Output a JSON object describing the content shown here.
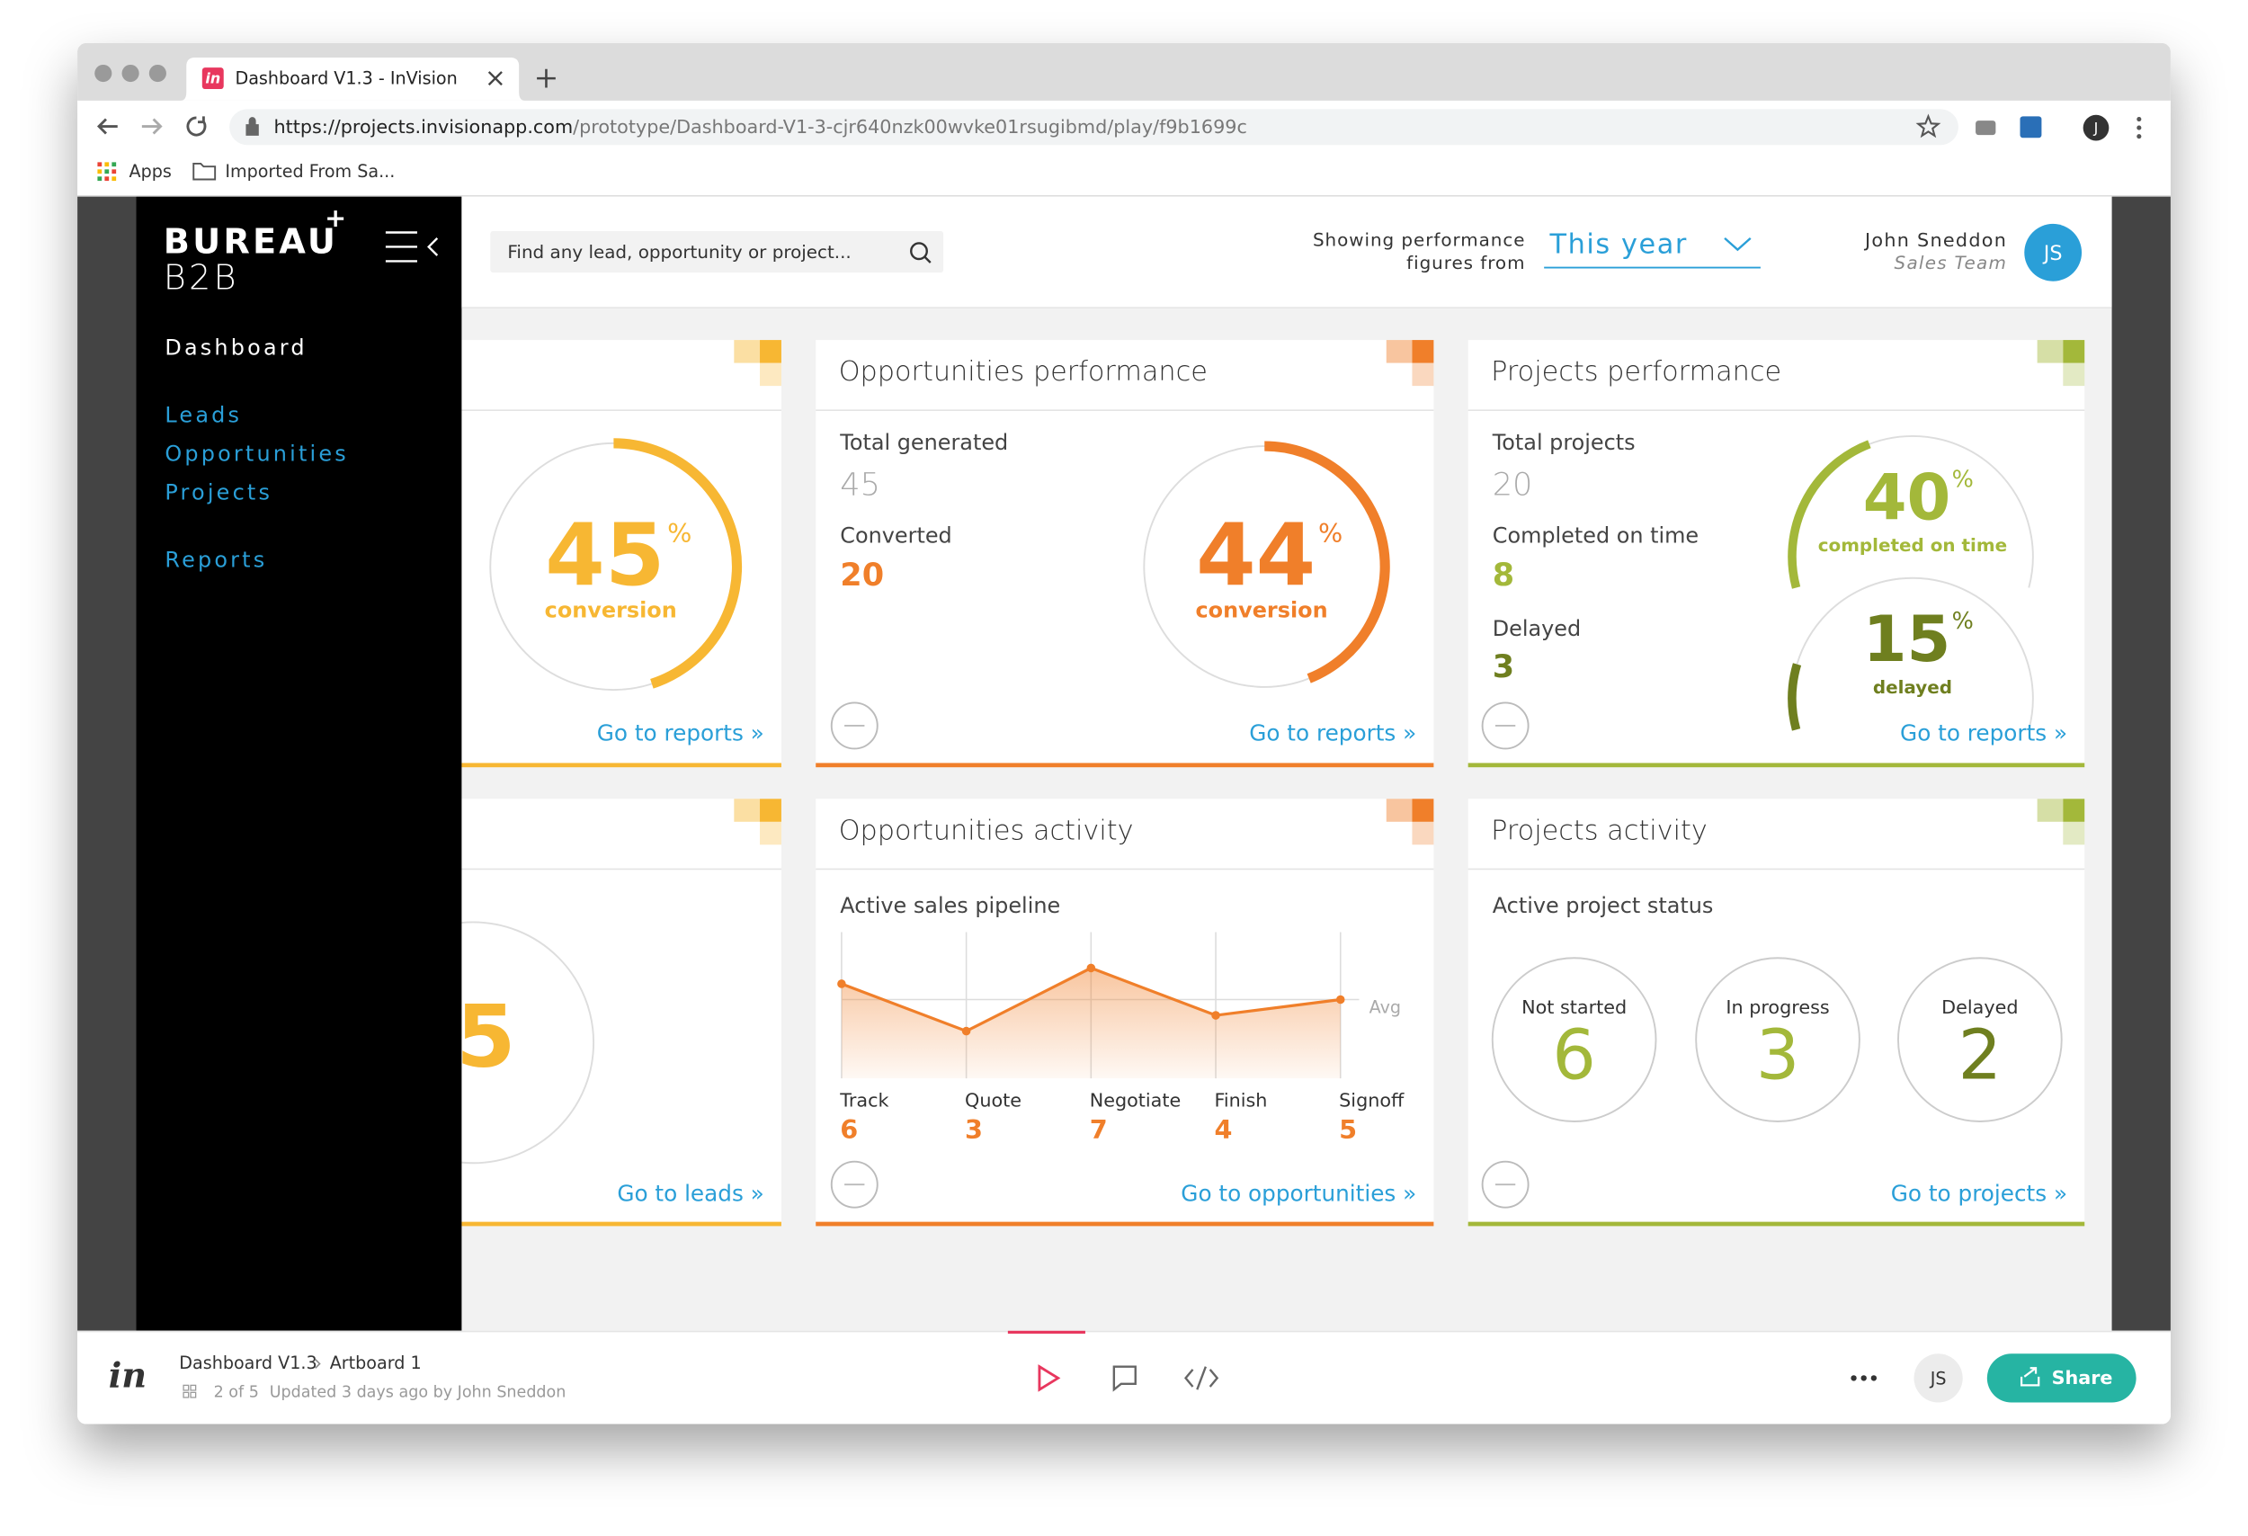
{
  "browser": {
    "tab_icon": "in",
    "tab_title": "Dashboard V1.3 - InVision",
    "url_host": "https://projects.invisionapp.com",
    "url_path": "/prototype/Dashboard-V1-3-cjr640nzk00wvke01rsugibmd/play/f9b1699c",
    "bookmarks": [
      "Apps",
      "Imported From Sa..."
    ],
    "profile": "J"
  },
  "sidebar": {
    "logo_top": "BUREAU",
    "logo_plus": "+",
    "logo_bottom": "B2B",
    "nav": [
      "Dashboard",
      "Leads",
      "Opportunities",
      "Projects",
      "Reports"
    ]
  },
  "header": {
    "search_placeholder": "Find any lead, opportunity or project...",
    "period_label_1": "Showing performance",
    "period_label_2": "figures from",
    "period": "This year",
    "user_name": "John Sneddon",
    "user_role": "Sales Team",
    "user_initials": "JS"
  },
  "cards": {
    "leads_performance": {
      "gauge": 45,
      "unit": "%",
      "gauge_label": "conversion",
      "link": "Go to reports »"
    },
    "opportunities_performance": {
      "title": "Opportunities performance",
      "total_label": "Total generated",
      "total": 45,
      "converted_label": "Converted",
      "converted": 20,
      "gauge": 44,
      "unit": "%",
      "gauge_label": "conversion",
      "link": "Go to reports »"
    },
    "projects_performance": {
      "title": "Projects performance",
      "total_label": "Total projects",
      "total": 20,
      "ontime_label": "Completed on time",
      "ontime": 8,
      "delayed_label": "Delayed",
      "delayed": 3,
      "gauges": [
        {
          "value": 40,
          "unit": "%",
          "label": "completed on time"
        },
        {
          "value": 15,
          "unit": "%",
          "label": "delayed"
        }
      ],
      "link": "Go to reports »"
    },
    "leads_activity": {
      "value_visible": "5",
      "link": "Go to leads »"
    },
    "opportunities_activity": {
      "title": "Opportunities activity",
      "subtitle": "Active sales pipeline",
      "avg_label": "Avg",
      "stages": [
        "Track",
        "Quote",
        "Negotiate",
        "Finish",
        "Signoff"
      ],
      "values": [
        6,
        3,
        7,
        4,
        5
      ],
      "link": "Go to opportunities »"
    },
    "projects_activity": {
      "title": "Projects activity",
      "subtitle": "Active project status",
      "statuses": [
        {
          "label": "Not started",
          "value": 6
        },
        {
          "label": "In progress",
          "value": 3
        },
        {
          "label": "Delayed",
          "value": 2
        }
      ],
      "link": "Go to projects »"
    }
  },
  "footer": {
    "logo": "in",
    "project": "Dashboard V1.3",
    "artboard": "Artboard 1",
    "page_info": "2 of 5",
    "updated": "Updated 3 days ago by John Sneddon",
    "initials": "JS",
    "share": "Share"
  }
}
